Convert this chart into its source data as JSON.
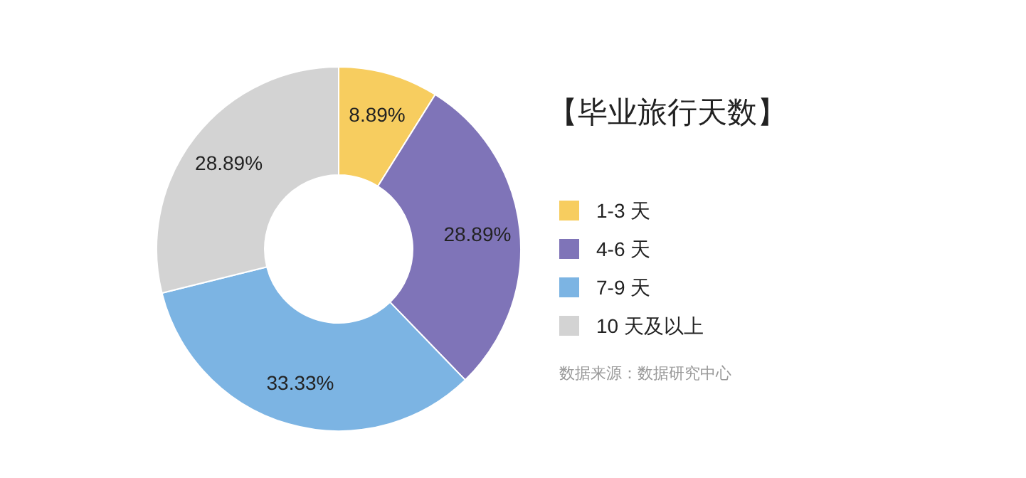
{
  "chart_data": {
    "type": "donut",
    "title": "【毕业旅行天数】",
    "categories": [
      "1-3 天",
      "4-6 天",
      "7-9 天",
      "10 天及以上"
    ],
    "values": [
      8.89,
      28.89,
      33.33,
      28.89
    ],
    "value_labels": [
      "8.89%",
      "28.89%",
      "33.33%",
      "28.89%"
    ],
    "colors": [
      "#f7cd5f",
      "#7f74b8",
      "#7cb4e3",
      "#d3d3d3"
    ],
    "legend": "right",
    "annotations": [
      "数据来源：数据研究中心"
    ]
  }
}
